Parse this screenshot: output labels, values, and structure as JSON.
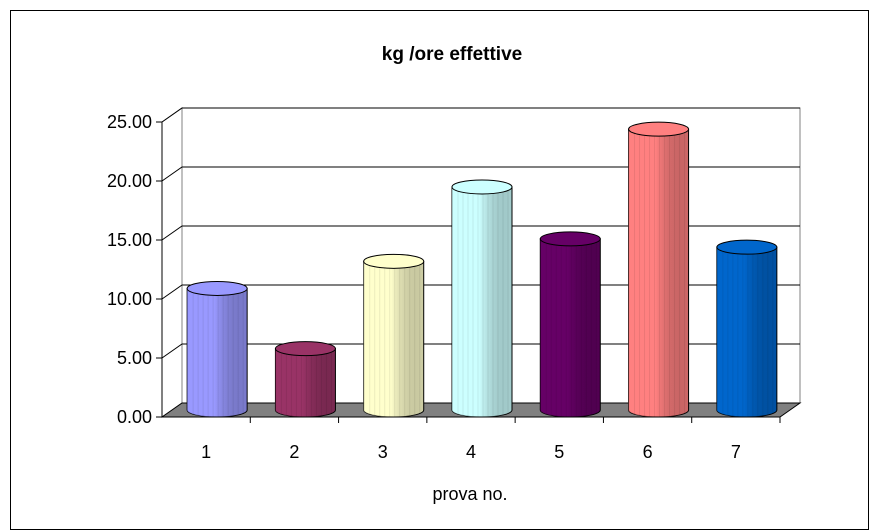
{
  "chart_data": {
    "type": "bar",
    "title": "kg /ore effettive",
    "xlabel": "prova no.",
    "ylabel": "",
    "categories": [
      "1",
      "2",
      "3",
      "4",
      "5",
      "6",
      "7"
    ],
    "values": [
      10.3,
      5.2,
      12.6,
      18.9,
      14.5,
      23.8,
      13.8
    ],
    "ylim": [
      0,
      25
    ],
    "yticks": [
      "0.00",
      "5.00",
      "10.00",
      "15.00",
      "20.00",
      "25.00"
    ],
    "grid": true,
    "legend": "none",
    "colors": [
      "#9999ff",
      "#993366",
      "#ffffcc",
      "#ccffff",
      "#660066",
      "#ff8080",
      "#0066cc"
    ]
  }
}
